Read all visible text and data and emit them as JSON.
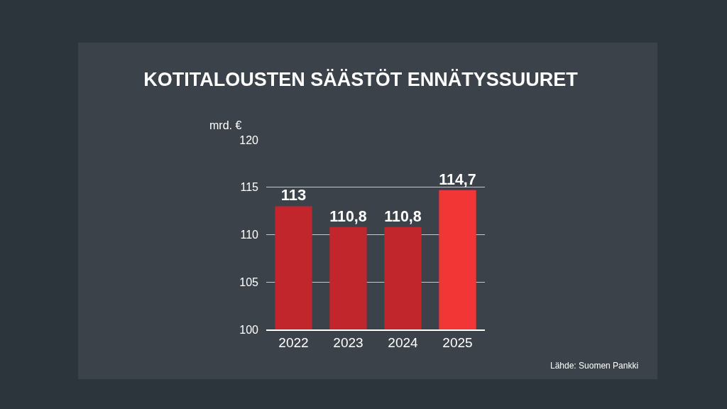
{
  "chart_data": {
    "type": "bar",
    "title": "KOTITALOUSTEN SÄÄSTÖT ENNÄTYSSUURET",
    "ylabel": "mrd. €",
    "categories": [
      "2022",
      "2023",
      "2024",
      "2025"
    ],
    "values": [
      113,
      110.8,
      110.8,
      114.7
    ],
    "colors": [
      "#c0262c",
      "#c0262c",
      "#c0262c",
      "#f23535"
    ],
    "value_labels": [
      "113",
      "110,8",
      "110,8",
      "114,7"
    ],
    "ylim": [
      100,
      120
    ],
    "yticks": [
      100,
      105,
      110,
      115,
      120
    ],
    "grid": "y",
    "annotations": [
      "Lähde: Suomen Pankki"
    ]
  }
}
